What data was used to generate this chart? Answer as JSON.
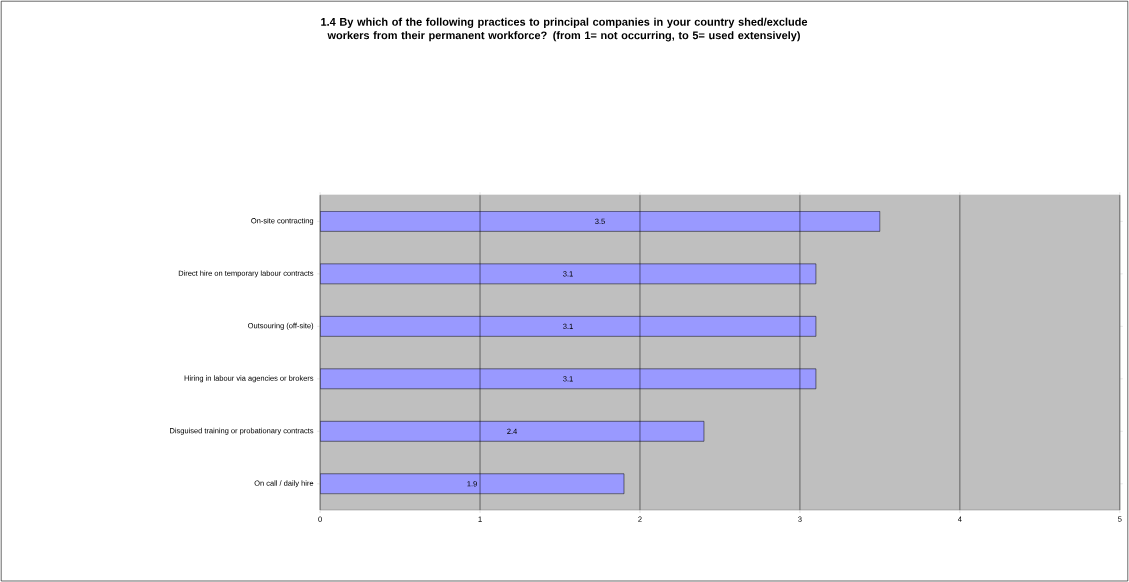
{
  "chart_data": {
    "type": "bar",
    "orientation": "horizontal",
    "title": "1.4 By which of the following practices to principal companies in your country shed/exclude workers from their permanent workforce? (from 1= not occurring, to 5= used extensively)",
    "categories": [
      "On-site contracting",
      "Direct hire on temporary labour contracts",
      "Outsouring (off-site)",
      "Hiring in labour via agencies or brokers",
      "Disguised training or probationary contracts",
      "On call / daily hire"
    ],
    "values": [
      3.5,
      3.1,
      3.1,
      3.1,
      2.4,
      1.9
    ],
    "data_labels": true,
    "color": "#9999ff",
    "xlim": [
      0,
      5
    ],
    "xticks": [
      0,
      1,
      2,
      3,
      4,
      5
    ],
    "grid": "x"
  }
}
